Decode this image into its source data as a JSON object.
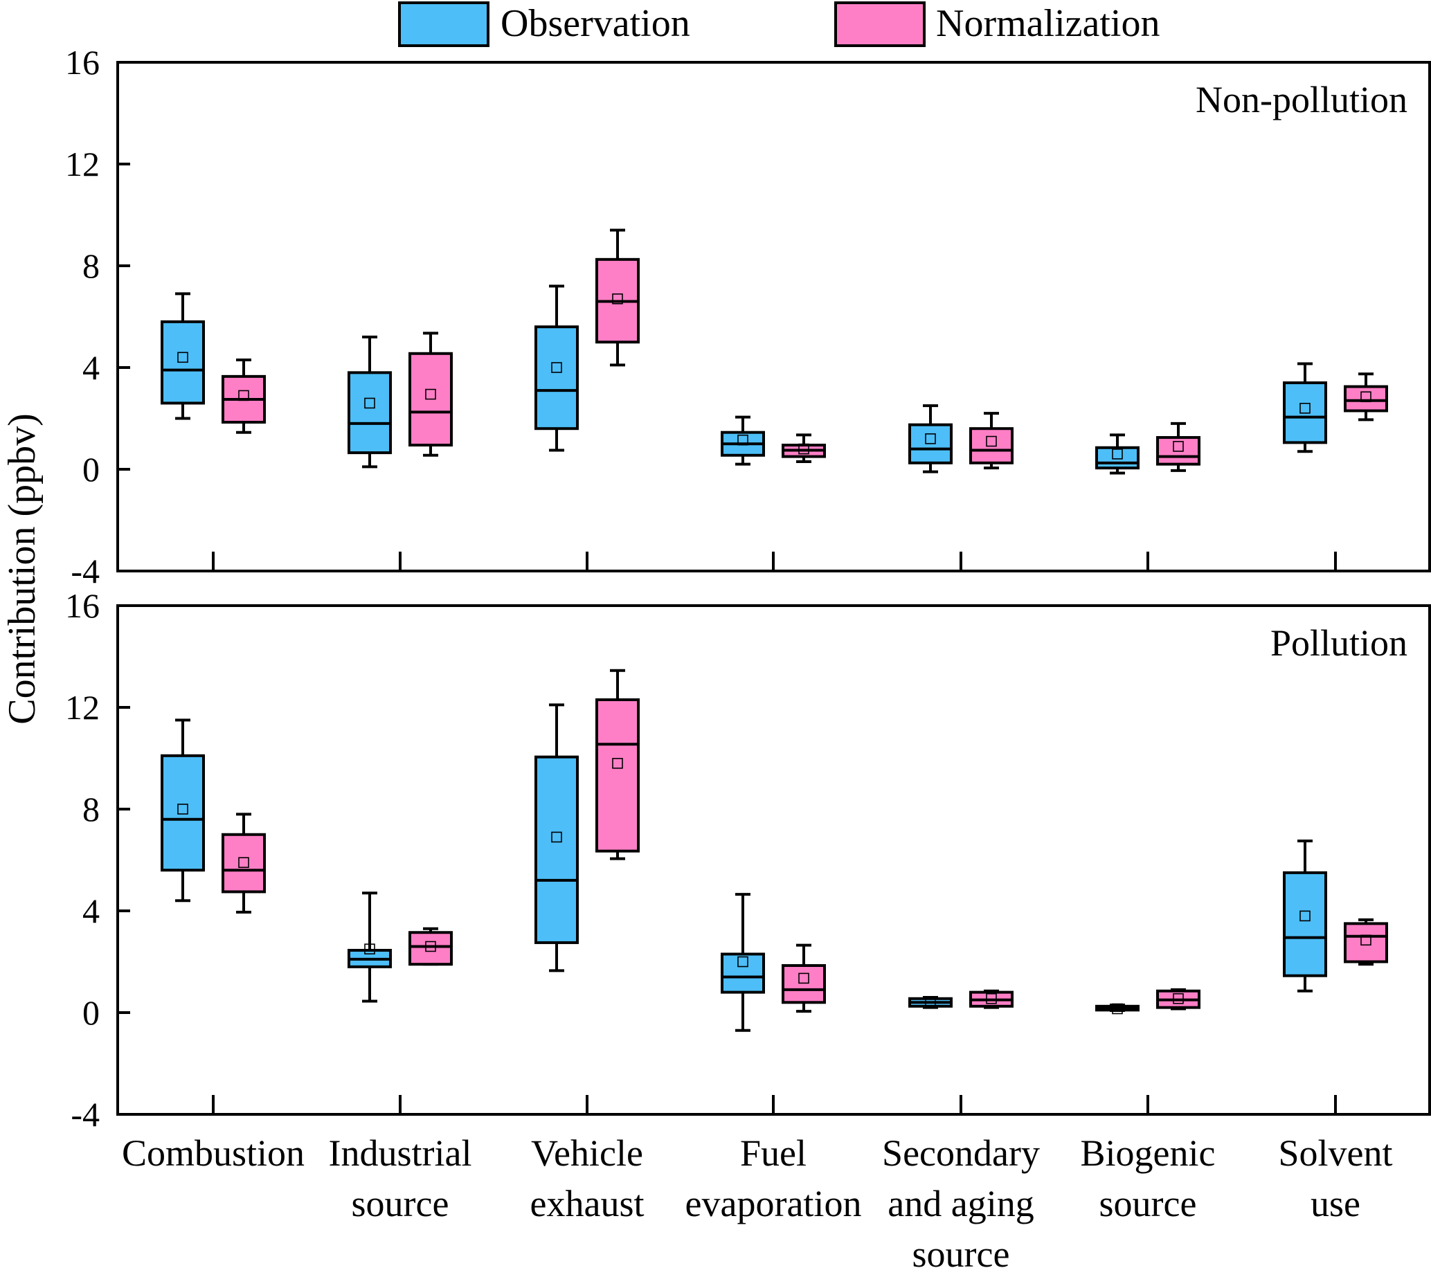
{
  "colors": {
    "observation": "#4DBEF7",
    "normalization": "#FF7FC6",
    "stroke": "#000000"
  },
  "chart_data": {
    "type": "box",
    "ylabel": "Contribution (ppbv)",
    "ylim": [
      -4,
      16
    ],
    "yticks": [
      -4,
      0,
      4,
      8,
      12,
      16
    ],
    "legend_position": "top-center",
    "legend": [
      {
        "key": "observation",
        "label": "Observation"
      },
      {
        "key": "normalization",
        "label": "Normalization"
      }
    ],
    "categories": [
      [
        "Combustion"
      ],
      [
        "Industrial",
        "source"
      ],
      [
        "Vehicle",
        "exhaust"
      ],
      [
        "Fuel",
        "evaporation"
      ],
      [
        "Secondary",
        "and aging",
        "source"
      ],
      [
        "Biogenic",
        "source"
      ],
      [
        "Solvent",
        "use"
      ]
    ],
    "panels": [
      {
        "label": "Non-pollution",
        "series": [
          {
            "name": "Observation",
            "key": "observation",
            "boxes": [
              {
                "whisker_low": 2.0,
                "q1": 2.6,
                "median": 3.9,
                "q3": 5.8,
                "whisker_high": 6.9,
                "mean": 4.4
              },
              {
                "whisker_low": 0.1,
                "q1": 0.65,
                "median": 1.8,
                "q3": 3.8,
                "whisker_high": 5.2,
                "mean": 2.6
              },
              {
                "whisker_low": 0.75,
                "q1": 1.6,
                "median": 3.1,
                "q3": 5.6,
                "whisker_high": 7.2,
                "mean": 4.0
              },
              {
                "whisker_low": 0.2,
                "q1": 0.55,
                "median": 1.0,
                "q3": 1.45,
                "whisker_high": 2.05,
                "mean": 1.15
              },
              {
                "whisker_low": -0.1,
                "q1": 0.25,
                "median": 0.8,
                "q3": 1.75,
                "whisker_high": 2.5,
                "mean": 1.2
              },
              {
                "whisker_low": -0.15,
                "q1": 0.05,
                "median": 0.25,
                "q3": 0.85,
                "whisker_high": 1.35,
                "mean": 0.6
              },
              {
                "whisker_low": 0.7,
                "q1": 1.05,
                "median": 2.05,
                "q3": 3.4,
                "whisker_high": 4.15,
                "mean": 2.4
              }
            ]
          },
          {
            "name": "Normalization",
            "key": "normalization",
            "boxes": [
              {
                "whisker_low": 1.45,
                "q1": 1.85,
                "median": 2.75,
                "q3": 3.65,
                "whisker_high": 4.3,
                "mean": 2.9
              },
              {
                "whisker_low": 0.55,
                "q1": 0.95,
                "median": 2.25,
                "q3": 4.55,
                "whisker_high": 5.35,
                "mean": 2.95
              },
              {
                "whisker_low": 4.1,
                "q1": 5.0,
                "median": 6.6,
                "q3": 8.25,
                "whisker_high": 9.4,
                "mean": 6.7
              },
              {
                "whisker_low": 0.3,
                "q1": 0.5,
                "median": 0.75,
                "q3": 0.95,
                "whisker_high": 1.35,
                "mean": 0.8
              },
              {
                "whisker_low": 0.05,
                "q1": 0.25,
                "median": 0.75,
                "q3": 1.6,
                "whisker_high": 2.2,
                "mean": 1.1
              },
              {
                "whisker_low": -0.05,
                "q1": 0.2,
                "median": 0.5,
                "q3": 1.25,
                "whisker_high": 1.8,
                "mean": 0.9
              },
              {
                "whisker_low": 1.95,
                "q1": 2.3,
                "median": 2.7,
                "q3": 3.25,
                "whisker_high": 3.75,
                "mean": 2.85
              }
            ]
          }
        ]
      },
      {
        "label": "Pollution",
        "series": [
          {
            "name": "Observation",
            "key": "observation",
            "boxes": [
              {
                "whisker_low": 4.4,
                "q1": 5.6,
                "median": 7.6,
                "q3": 10.1,
                "whisker_high": 11.5,
                "mean": 8.0
              },
              {
                "whisker_low": 0.45,
                "q1": 1.8,
                "median": 2.1,
                "q3": 2.45,
                "whisker_high": 4.7,
                "mean": 2.5
              },
              {
                "whisker_low": 1.65,
                "q1": 2.75,
                "median": 5.2,
                "q3": 10.05,
                "whisker_high": 12.1,
                "mean": 6.9
              },
              {
                "whisker_low": -0.7,
                "q1": 0.8,
                "median": 1.4,
                "q3": 2.3,
                "whisker_high": 4.65,
                "mean": 2.0
              },
              {
                "whisker_low": 0.2,
                "q1": 0.25,
                "median": 0.4,
                "q3": 0.55,
                "whisker_high": 0.6,
                "mean": 0.4
              },
              {
                "whisker_low": 0.08,
                "q1": 0.1,
                "median": 0.15,
                "q3": 0.25,
                "whisker_high": 0.3,
                "mean": 0.15
              },
              {
                "whisker_low": 0.85,
                "q1": 1.45,
                "median": 2.95,
                "q3": 5.5,
                "whisker_high": 6.75,
                "mean": 3.8
              }
            ]
          },
          {
            "name": "Normalization",
            "key": "normalization",
            "boxes": [
              {
                "whisker_low": 3.95,
                "q1": 4.75,
                "median": 5.6,
                "q3": 7.0,
                "whisker_high": 7.8,
                "mean": 5.9
              },
              {
                "whisker_low": 1.9,
                "q1": 1.9,
                "median": 2.6,
                "q3": 3.15,
                "whisker_high": 3.3,
                "mean": 2.6
              },
              {
                "whisker_low": 6.05,
                "q1": 6.35,
                "median": 10.55,
                "q3": 12.3,
                "whisker_high": 13.45,
                "mean": 9.8
              },
              {
                "whisker_low": 0.05,
                "q1": 0.4,
                "median": 0.9,
                "q3": 1.85,
                "whisker_high": 2.65,
                "mean": 1.35
              },
              {
                "whisker_low": 0.2,
                "q1": 0.25,
                "median": 0.5,
                "q3": 0.8,
                "whisker_high": 0.85,
                "mean": 0.55
              },
              {
                "whisker_low": 0.15,
                "q1": 0.2,
                "median": 0.5,
                "q3": 0.85,
                "whisker_high": 0.9,
                "mean": 0.55
              },
              {
                "whisker_low": 1.9,
                "q1": 2.0,
                "median": 3.0,
                "q3": 3.5,
                "whisker_high": 3.65,
                "mean": 2.85
              }
            ]
          }
        ]
      }
    ]
  }
}
